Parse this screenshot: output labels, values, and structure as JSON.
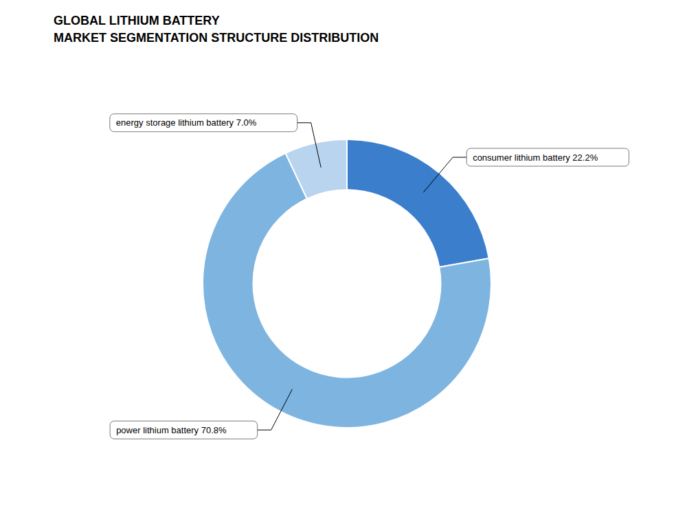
{
  "chart_data": {
    "type": "donut",
    "title": "GLOBAL LITHIUM BATTERY\nMARKET SEGMENTATION STRUCTURE DISTRIBUTION",
    "categories": [
      "consumer lithium battery 22.2%",
      "power lithium battery 70.8%",
      "energy storage lithium battery 7.0%"
    ],
    "values": [
      22.2,
      70.8,
      7.0
    ],
    "colors": [
      "#3B7ECC",
      "#7EB4E0",
      "#B8D4EE"
    ]
  }
}
